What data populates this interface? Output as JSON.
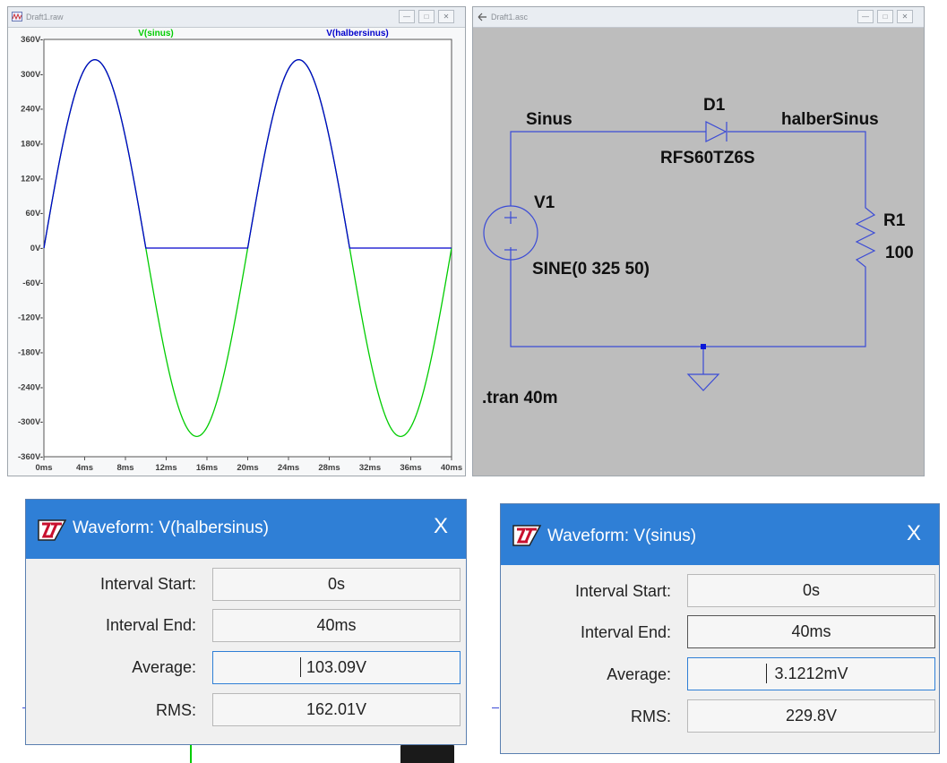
{
  "waveform_window": {
    "title": "Draft1.raw",
    "trace_labels": [
      {
        "label": "V(sinus)",
        "color": "#00cc00"
      },
      {
        "label": "V(halbersinus)",
        "color": "#0000cc"
      }
    ]
  },
  "schematic_window": {
    "title": "Draft1.asc",
    "labels": {
      "net_left": "Sinus",
      "diode_ref": "D1",
      "net_right": "halberSinus",
      "diode_model": "RFS60TZ6S",
      "source_ref": "V1",
      "resistor_ref": "R1",
      "resistor_value": "100",
      "source_value": "SINE(0 325 50)",
      "directive": ".tran 40m"
    }
  },
  "chart_data": {
    "type": "line",
    "x_unit": "ms",
    "xlim": [
      0,
      40
    ],
    "ylim": [
      -360,
      360
    ],
    "x_tick_labels": [
      "0ms",
      "4ms",
      "8ms",
      "12ms",
      "16ms",
      "20ms",
      "24ms",
      "28ms",
      "32ms",
      "36ms",
      "40ms"
    ],
    "y_tick_labels": [
      "360V-",
      "300V-",
      "240V-",
      "180V-",
      "120V-",
      "60V-",
      "0V-",
      "-60V-",
      "-120V-",
      "-180V-",
      "-240V-",
      "-300V-",
      "-360V-"
    ],
    "grid": false,
    "legend": "top",
    "series": [
      {
        "name": "V(sinus)",
        "color": "#00cc00",
        "amplitude": 325,
        "frequency_hz": 50
      },
      {
        "name": "V(halbersinus)",
        "color": "#0000cc",
        "amplitude": 325,
        "frequency_hz": 50,
        "half_wave": true
      }
    ]
  },
  "dialog_left": {
    "title": "Waveform: V(halbersinus)",
    "close": "X",
    "rows": [
      {
        "label": "Interval Start:",
        "value": "0s"
      },
      {
        "label": "Interval End:",
        "value": "40ms"
      },
      {
        "label": "Average:",
        "value": "103.09V"
      },
      {
        "label": "RMS:",
        "value": "162.01V"
      }
    ]
  },
  "dialog_right": {
    "title": "Waveform: V(sinus)",
    "close": "X",
    "rows": [
      {
        "label": "Interval Start:",
        "value": "0s"
      },
      {
        "label": "Interval End:",
        "value": "40ms"
      },
      {
        "label": "Average:",
        "value": "3.1212mV"
      },
      {
        "label": "RMS:",
        "value": "229.8V"
      }
    ]
  }
}
